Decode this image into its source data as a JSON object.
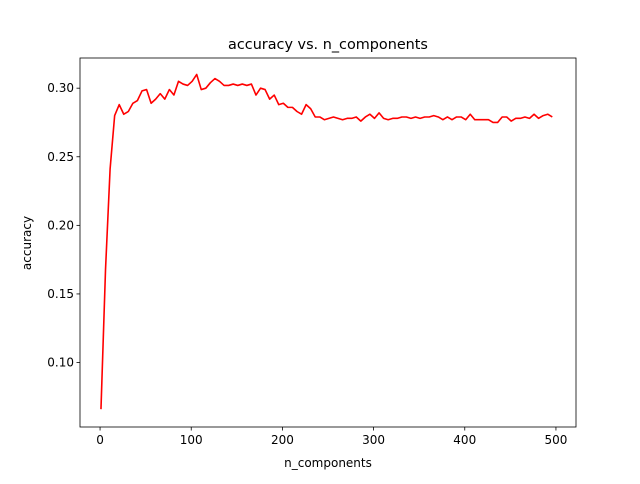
{
  "chart_data": {
    "type": "line",
    "title": "accuracy vs. n_components",
    "xlabel": "n_components",
    "ylabel": "accuracy",
    "xlim": [
      -22,
      522
    ],
    "ylim": [
      0.053,
      0.322
    ],
    "grid": false,
    "xticks": [
      0,
      100,
      200,
      300,
      400,
      500
    ],
    "xtick_labels": [
      "0",
      "100",
      "200",
      "300",
      "400",
      "500"
    ],
    "yticks": [
      0.1,
      0.15,
      0.2,
      0.25,
      0.3
    ],
    "ytick_labels": [
      "0.10",
      "0.15",
      "0.20",
      "0.25",
      "0.30"
    ],
    "series": [
      {
        "color": "#ff0000",
        "x": [
          1,
          6,
          11,
          16,
          21,
          26,
          31,
          36,
          41,
          46,
          51,
          56,
          61,
          66,
          71,
          76,
          81,
          86,
          91,
          96,
          101,
          106,
          111,
          116,
          121,
          126,
          131,
          136,
          141,
          146,
          151,
          156,
          161,
          166,
          171,
          176,
          181,
          186,
          191,
          196,
          201,
          206,
          211,
          216,
          221,
          226,
          231,
          236,
          241,
          246,
          251,
          256,
          261,
          266,
          271,
          276,
          281,
          286,
          291,
          296,
          301,
          306,
          311,
          316,
          321,
          326,
          331,
          336,
          341,
          346,
          351,
          356,
          361,
          366,
          371,
          376,
          381,
          386,
          391,
          396,
          401,
          406,
          411,
          416,
          421,
          426,
          431,
          436,
          441,
          446,
          451,
          456,
          461,
          466,
          471,
          476,
          481,
          486,
          491,
          496
        ],
        "y": [
          0.066,
          0.168,
          0.241,
          0.28,
          0.288,
          0.281,
          0.283,
          0.289,
          0.291,
          0.298,
          0.299,
          0.289,
          0.292,
          0.296,
          0.292,
          0.299,
          0.295,
          0.305,
          0.303,
          0.302,
          0.305,
          0.31,
          0.299,
          0.3,
          0.304,
          0.307,
          0.305,
          0.302,
          0.302,
          0.303,
          0.302,
          0.303,
          0.302,
          0.303,
          0.295,
          0.3,
          0.299,
          0.292,
          0.295,
          0.288,
          0.289,
          0.286,
          0.286,
          0.283,
          0.281,
          0.288,
          0.285,
          0.279,
          0.279,
          0.277,
          0.278,
          0.279,
          0.278,
          0.277,
          0.278,
          0.278,
          0.279,
          0.276,
          0.279,
          0.281,
          0.278,
          0.282,
          0.278,
          0.277,
          0.278,
          0.278,
          0.279,
          0.279,
          0.278,
          0.279,
          0.278,
          0.279,
          0.279,
          0.28,
          0.279,
          0.277,
          0.279,
          0.277,
          0.279,
          0.279,
          0.277,
          0.281,
          0.277,
          0.277,
          0.277,
          0.277,
          0.275,
          0.275,
          0.279,
          0.279,
          0.276,
          0.278,
          0.278,
          0.279,
          0.278,
          0.281,
          0.278,
          0.28,
          0.281,
          0.279
        ]
      }
    ]
  }
}
